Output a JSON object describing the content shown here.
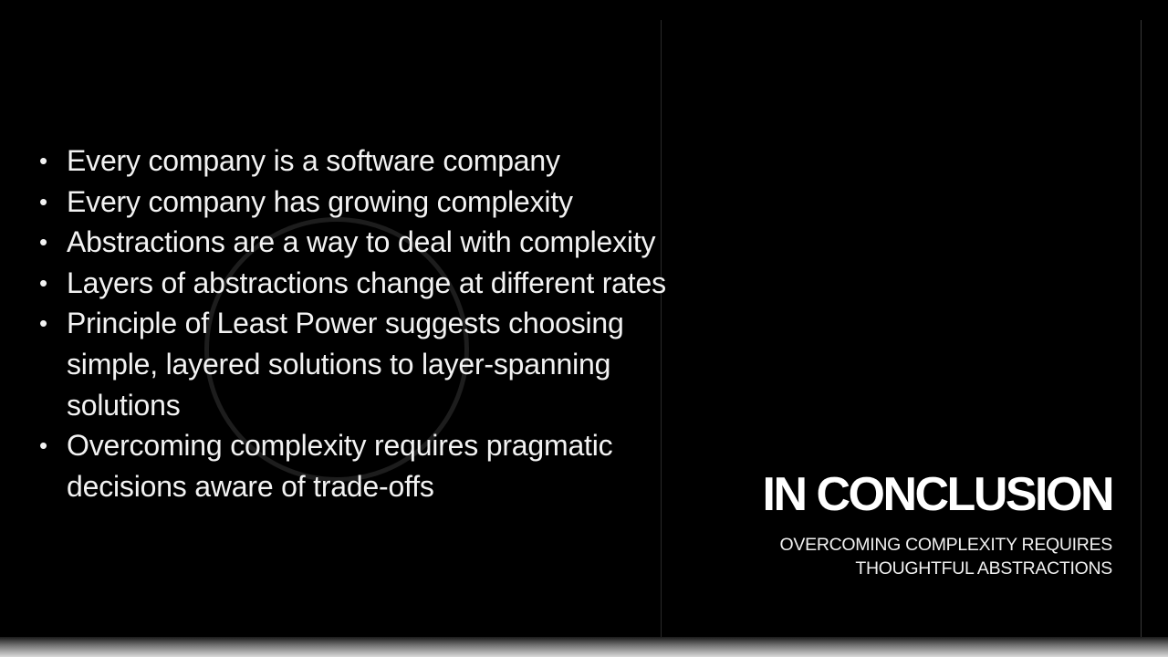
{
  "slide": {
    "bullets": [
      "Every company is a software company",
      "Every company has growing complexity",
      "Abstractions are a way to deal with complexity",
      "Layers of abstractions change at different rates",
      "Principle of Least Power suggests choosing simple, layered solutions to layer-spanning solutions",
      "Overcoming complexity requires pragmatic decisions aware of trade-offs"
    ],
    "bullet_glyph": "•",
    "title": "IN CONCLUSION",
    "subtitle": "OVERCOMING COMPLEXITY REQUIRES THOUGHTFUL ABSTRACTIONS"
  },
  "colors": {
    "background": "#000000",
    "text": "#f2f2f2"
  }
}
